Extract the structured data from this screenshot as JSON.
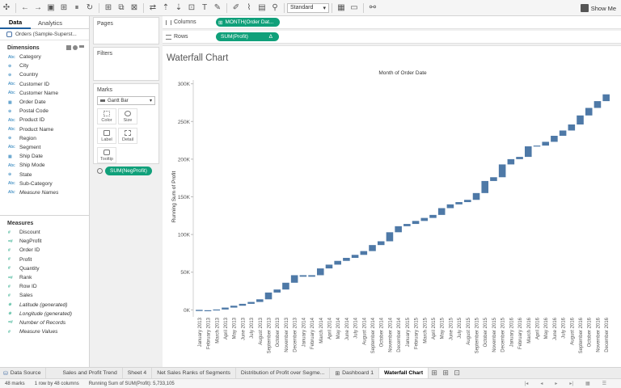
{
  "toolbar": {
    "fit_value": "Standard",
    "show_me_label": "Show Me",
    "icons": [
      "tableau-logo-icon",
      "undo-icon",
      "redo-icon",
      "save-icon",
      "add-datasource-icon",
      "pause-icon",
      "refresh-icon",
      "new-worksheet-icon",
      "duplicate-icon",
      "clear-icon",
      "swap-icon",
      "sort-asc-icon",
      "sort-desc-icon",
      "group-icon",
      "labels-icon",
      "pin-icon",
      "highlight-icon",
      "annotate-icon",
      "format-icon",
      "fit-icon",
      "presentation-icon",
      "share-icon"
    ]
  },
  "data_pane": {
    "tabs": [
      "Data",
      "Analytics"
    ],
    "datasource": "Orders (Sample-Superst...",
    "dimensions_title": "Dimensions",
    "dimensions": [
      {
        "type": "Abc",
        "name": "Category"
      },
      {
        "type": "⊕",
        "name": "City"
      },
      {
        "type": "⊕",
        "name": "Country"
      },
      {
        "type": "Abc",
        "name": "Customer ID"
      },
      {
        "type": "Abc",
        "name": "Customer Name"
      },
      {
        "type": "▦",
        "name": "Order Date"
      },
      {
        "type": "⊕",
        "name": "Postal Code"
      },
      {
        "type": "Abc",
        "name": "Product ID"
      },
      {
        "type": "Abc",
        "name": "Product Name"
      },
      {
        "type": "⊕",
        "name": "Region"
      },
      {
        "type": "Abc",
        "name": "Segment"
      },
      {
        "type": "▦",
        "name": "Ship Date"
      },
      {
        "type": "Abc",
        "name": "Ship Mode"
      },
      {
        "type": "⊕",
        "name": "State"
      },
      {
        "type": "Abc",
        "name": "Sub-Category"
      },
      {
        "type": "Abc",
        "name": "Measure Names",
        "italic": true
      }
    ],
    "measures_title": "Measures",
    "measures": [
      {
        "type": "#",
        "name": "Discount"
      },
      {
        "type": "=#",
        "name": "NegProfit"
      },
      {
        "type": "#",
        "name": "Order ID"
      },
      {
        "type": "#",
        "name": "Profit"
      },
      {
        "type": "#",
        "name": "Quantity"
      },
      {
        "type": "=#",
        "name": "Rank"
      },
      {
        "type": "#",
        "name": "Row ID"
      },
      {
        "type": "#",
        "name": "Sales"
      },
      {
        "type": "⊕",
        "name": "Latitude (generated)",
        "italic": true
      },
      {
        "type": "⊕",
        "name": "Longitude (generated)",
        "italic": true
      },
      {
        "type": "=#",
        "name": "Number of Records",
        "italic": true
      },
      {
        "type": "#",
        "name": "Measure Values",
        "italic": true
      }
    ]
  },
  "cards": {
    "pages": "Pages",
    "filters": "Filters",
    "marks": "Marks",
    "mark_type": "Gantt Bar",
    "mark_buttons": [
      "Color",
      "Size",
      "Label",
      "Detail",
      "Tooltip"
    ],
    "size_pill": "SUM(NegProfit)"
  },
  "shelves": {
    "columns_label": "Columns",
    "columns_pill": "MONTH(Order Dat...",
    "rows_label": "Rows",
    "rows_pill": "SUM(Profit)",
    "rows_delta": "Δ"
  },
  "chart_title": "Waterfall Chart",
  "chart_data": {
    "type": "bar",
    "subtype": "waterfall-gantt",
    "x_header": "Month of Order Date",
    "ylabel": "Running Sum of Profit",
    "ylim": [
      -5000,
      305000
    ],
    "y_ticks": [
      0,
      50000,
      100000,
      150000,
      200000,
      250000,
      300000
    ],
    "y_tick_labels": [
      "0K",
      "50K",
      "100K",
      "150K",
      "200K",
      "250K",
      "300K"
    ],
    "bar_color": "#4e79a7",
    "categories": [
      "January 2013",
      "February 2013",
      "March 2013",
      "April 2013",
      "May 2013",
      "June 2013",
      "July 2013",
      "August 2013",
      "September 2013",
      "October 2013",
      "November 2013",
      "December 2013",
      "January 2014",
      "February 2014",
      "March 2014",
      "April 2014",
      "May 2014",
      "June 2014",
      "July 2014",
      "August 2014",
      "September 2014",
      "October 2014",
      "November 2014",
      "December 2014",
      "January 2015",
      "February 2015",
      "March 2015",
      "April 2015",
      "May 2015",
      "June 2015",
      "July 2015",
      "August 2015",
      "September 2015",
      "October 2015",
      "November 2015",
      "December 2015",
      "January 2016",
      "February 2016",
      "March 2016",
      "April 2016",
      "May 2016",
      "June 2016",
      "July 2016",
      "August 2016",
      "September 2016",
      "October 2016",
      "November 2016",
      "December 2016"
    ],
    "bars": [
      {
        "start": 0,
        "end": -1500
      },
      {
        "start": -1500,
        "end": -500
      },
      {
        "start": -500,
        "end": 500
      },
      {
        "start": 500,
        "end": 3000
      },
      {
        "start": 3000,
        "end": 5500
      },
      {
        "start": 5500,
        "end": 8000
      },
      {
        "start": 8000,
        "end": 10500
      },
      {
        "start": 10500,
        "end": 14000
      },
      {
        "start": 14000,
        "end": 23000
      },
      {
        "start": 23000,
        "end": 27000
      },
      {
        "start": 27000,
        "end": 36000
      },
      {
        "start": 36000,
        "end": 46000
      },
      {
        "start": 46000,
        "end": 44000
      },
      {
        "start": 44000,
        "end": 46000
      },
      {
        "start": 46000,
        "end": 55000
      },
      {
        "start": 55000,
        "end": 60000
      },
      {
        "start": 60000,
        "end": 65000
      },
      {
        "start": 65000,
        "end": 69000
      },
      {
        "start": 69000,
        "end": 73000
      },
      {
        "start": 73000,
        "end": 78000
      },
      {
        "start": 78000,
        "end": 86000
      },
      {
        "start": 86000,
        "end": 91000
      },
      {
        "start": 91000,
        "end": 103000
      },
      {
        "start": 103000,
        "end": 111000
      },
      {
        "start": 111000,
        "end": 114000
      },
      {
        "start": 114000,
        "end": 118000
      },
      {
        "start": 118000,
        "end": 122000
      },
      {
        "start": 122000,
        "end": 126000
      },
      {
        "start": 126000,
        "end": 135000
      },
      {
        "start": 135000,
        "end": 140000
      },
      {
        "start": 140000,
        "end": 143000
      },
      {
        "start": 143000,
        "end": 146000
      },
      {
        "start": 146000,
        "end": 155000
      },
      {
        "start": 155000,
        "end": 171000
      },
      {
        "start": 171000,
        "end": 176000
      },
      {
        "start": 176000,
        "end": 193000
      },
      {
        "start": 193000,
        "end": 200000
      },
      {
        "start": 200000,
        "end": 203000
      },
      {
        "start": 203000,
        "end": 217000
      },
      {
        "start": 217000,
        "end": 218000
      },
      {
        "start": 218000,
        "end": 223000
      },
      {
        "start": 223000,
        "end": 231000
      },
      {
        "start": 231000,
        "end": 238000
      },
      {
        "start": 238000,
        "end": 246000
      },
      {
        "start": 246000,
        "end": 258000
      },
      {
        "start": 258000,
        "end": 268000
      },
      {
        "start": 268000,
        "end": 277000
      },
      {
        "start": 277000,
        "end": 286000
      }
    ]
  },
  "sheet_tabs": [
    "Data Source",
    "Sales and Profit Trend",
    "Sheet 4",
    "Net Sales Ranks of Segments",
    "Distribution of Profit over Segme...",
    "Dashboard 1",
    "Waterfall Chart"
  ],
  "active_tab": "Waterfall Chart",
  "status": {
    "marks": "48 marks",
    "rows_cols": "1 row by 48 columns",
    "sum": "Running Sum of SUM(Profit): 5,733,105"
  }
}
